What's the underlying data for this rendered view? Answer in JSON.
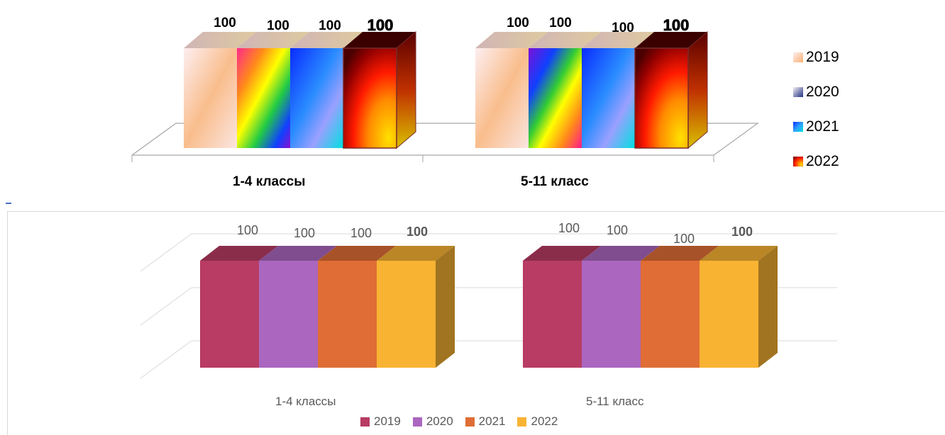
{
  "chart_data": [
    {
      "type": "bar",
      "categories": [
        "1-4 классы",
        "5-11 класс"
      ],
      "series": [
        {
          "name": "2019",
          "values": [
            100,
            100
          ]
        },
        {
          "name": "2020",
          "values": [
            100,
            100
          ]
        },
        {
          "name": "2021",
          "values": [
            100,
            100
          ]
        },
        {
          "name": "2022",
          "values": [
            100,
            100
          ]
        }
      ],
      "data_labels": [
        "100",
        "100",
        "100",
        "100"
      ],
      "ylim": [
        0,
        100
      ],
      "grid": false,
      "legend_position": "right",
      "style": "3d-gradient"
    },
    {
      "type": "bar",
      "categories": [
        "1-4 классы",
        "5-11 класс"
      ],
      "series": [
        {
          "name": "2019",
          "values": [
            100,
            100
          ],
          "color": "#b83c64"
        },
        {
          "name": "2020",
          "values": [
            100,
            100
          ],
          "color": "#ab66bf"
        },
        {
          "name": "2021",
          "values": [
            100,
            100
          ],
          "color": "#df6d35"
        },
        {
          "name": "2022",
          "values": [
            100,
            100
          ],
          "color": "#f8b333"
        }
      ],
      "data_labels": [
        "100",
        "100",
        "100",
        "100"
      ],
      "ylim": [
        0,
        100
      ],
      "grid": true,
      "legend_position": "bottom",
      "style": "3d-flat"
    }
  ]
}
